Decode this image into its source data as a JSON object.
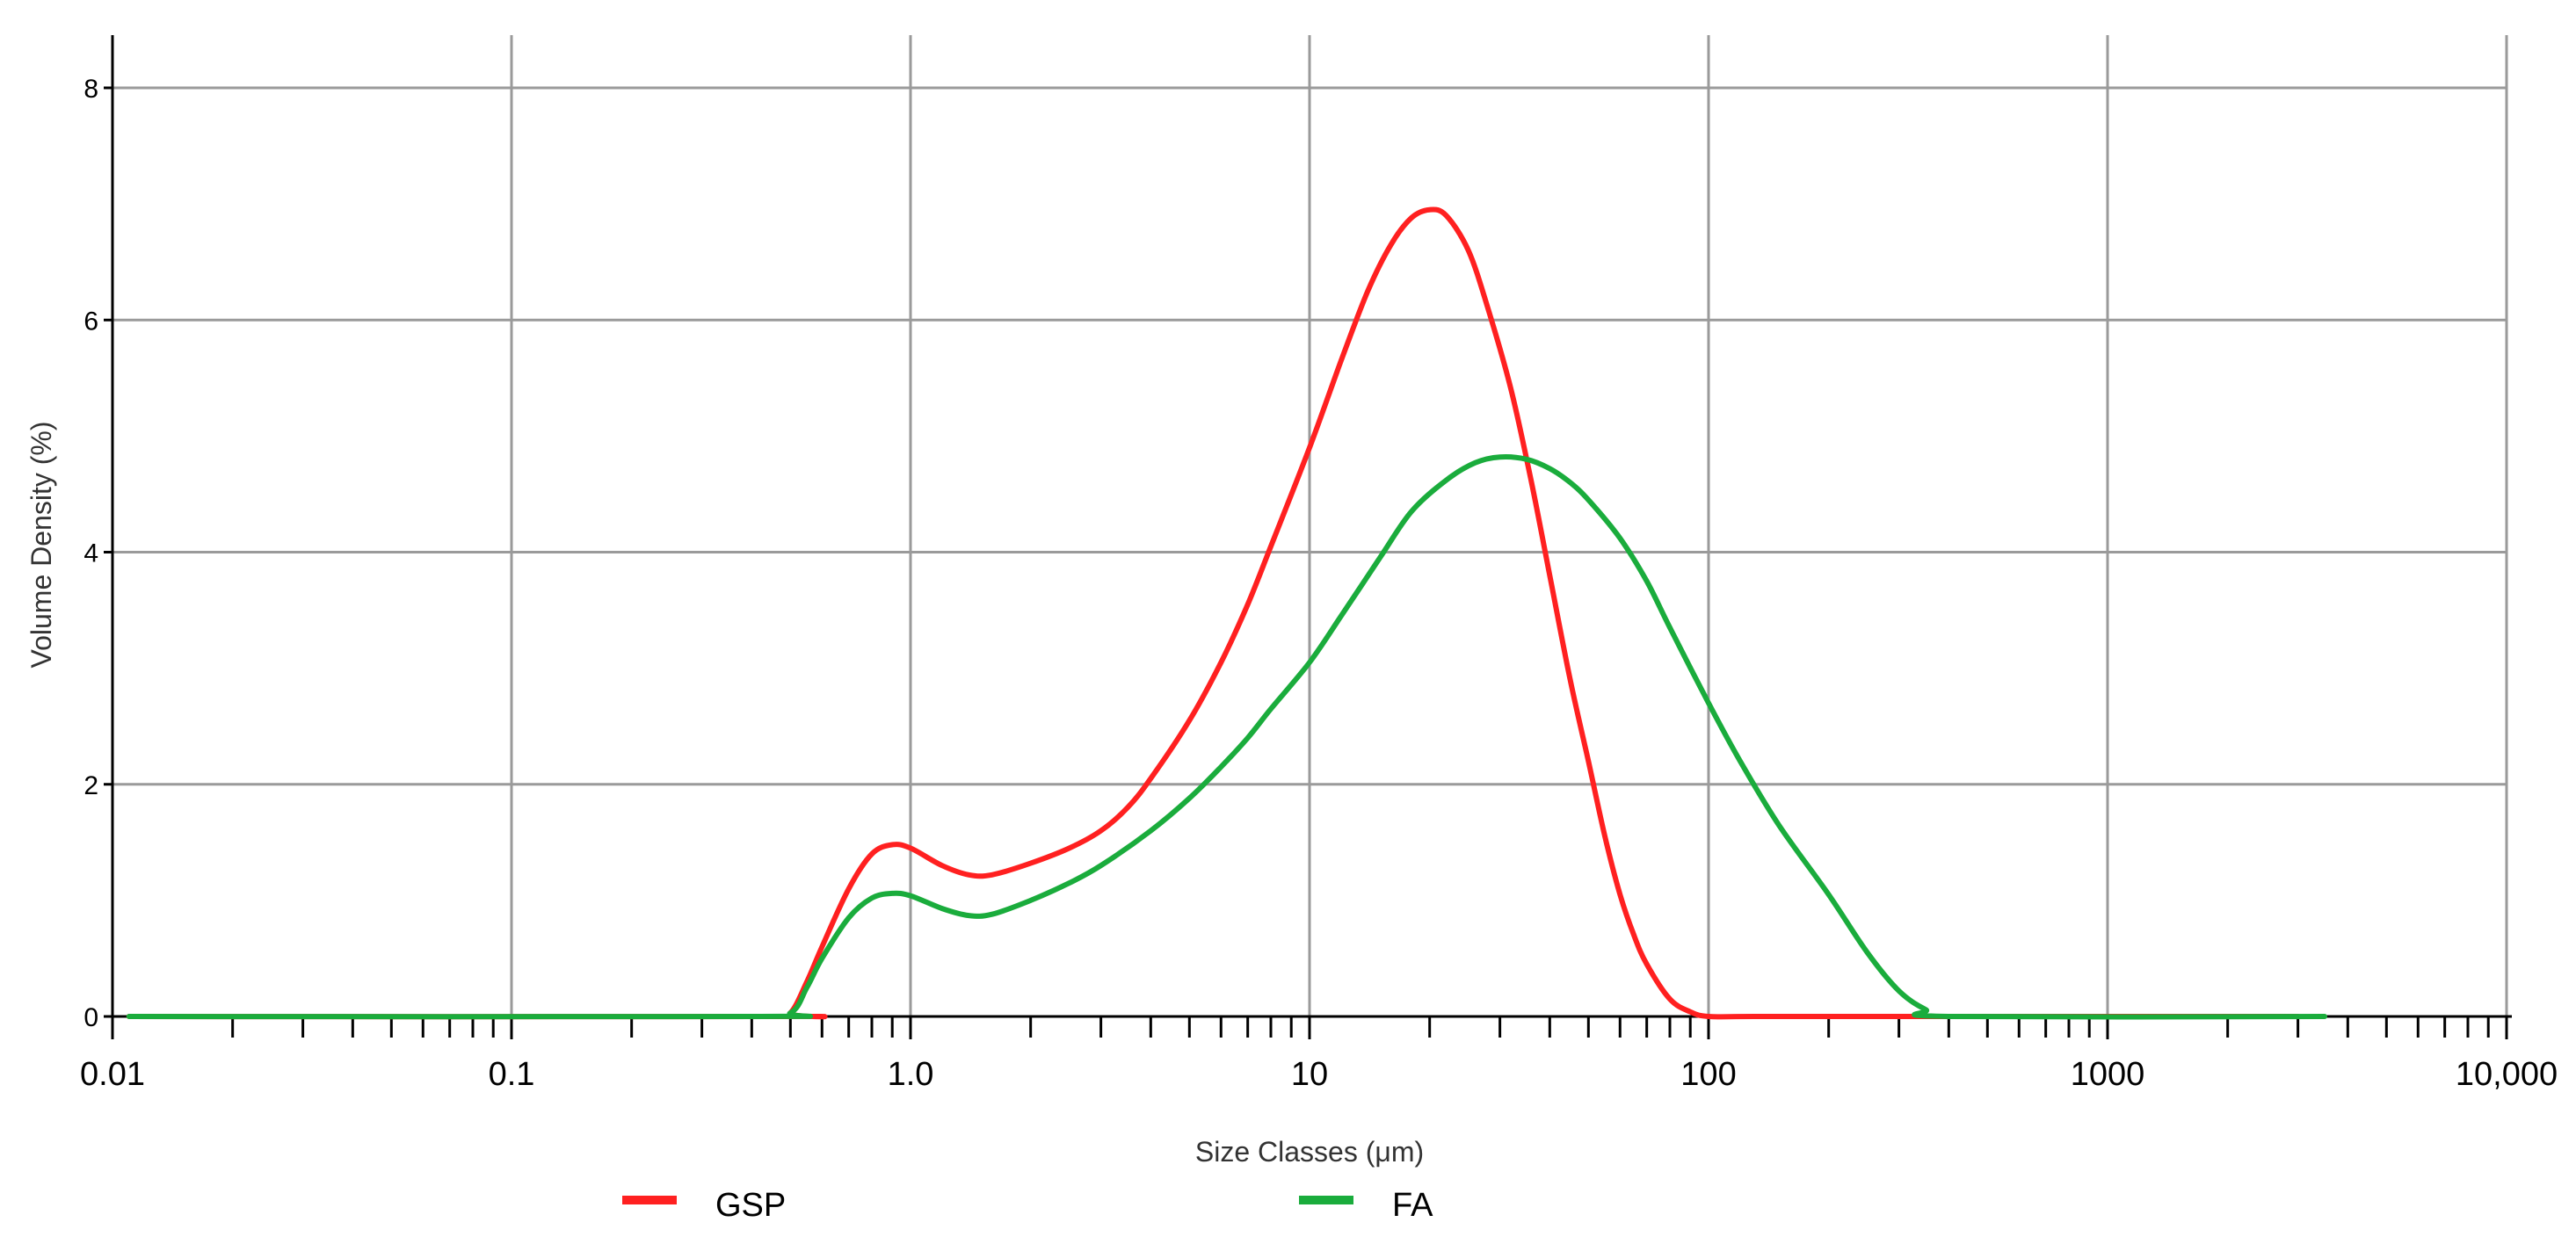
{
  "chart_data": {
    "type": "line",
    "xscale": "log",
    "xlabel": "Size Classes (μm)",
    "ylabel": "Volume Density (%)",
    "xlim": [
      0.01,
      10000
    ],
    "ylim": [
      0,
      8
    ],
    "x_ticks": [
      {
        "value": 0.01,
        "label": "0.01"
      },
      {
        "value": 0.1,
        "label": "0.1"
      },
      {
        "value": 1,
        "label": "1.0"
      },
      {
        "value": 10,
        "label": "10"
      },
      {
        "value": 100,
        "label": "100"
      },
      {
        "value": 1000,
        "label": "1000"
      },
      {
        "value": 10000,
        "label": "10,000"
      }
    ],
    "y_ticks": [
      {
        "value": 0,
        "label": "0"
      },
      {
        "value": 2,
        "label": "2"
      },
      {
        "value": 4,
        "label": "4"
      },
      {
        "value": 6,
        "label": "6"
      },
      {
        "value": 8,
        "label": "8"
      }
    ],
    "grid": true,
    "legend_position": "bottom",
    "series": [
      {
        "name": "GSP",
        "color": "#ff2020",
        "points": [
          [
            0.011,
            0
          ],
          [
            0.45,
            0
          ],
          [
            0.5,
            0.03
          ],
          [
            0.55,
            0.3
          ],
          [
            0.6,
            0.6
          ],
          [
            0.7,
            1.1
          ],
          [
            0.8,
            1.4
          ],
          [
            0.9,
            1.48
          ],
          [
            1.0,
            1.45
          ],
          [
            1.2,
            1.3
          ],
          [
            1.4,
            1.22
          ],
          [
            1.6,
            1.22
          ],
          [
            2.0,
            1.32
          ],
          [
            2.5,
            1.45
          ],
          [
            3.0,
            1.6
          ],
          [
            3.5,
            1.8
          ],
          [
            4.0,
            2.05
          ],
          [
            5.0,
            2.55
          ],
          [
            6.0,
            3.05
          ],
          [
            7.0,
            3.55
          ],
          [
            8.0,
            4.05
          ],
          [
            10,
            4.9
          ],
          [
            12,
            5.65
          ],
          [
            14,
            6.25
          ],
          [
            16,
            6.65
          ],
          [
            18,
            6.88
          ],
          [
            20,
            6.95
          ],
          [
            22,
            6.9
          ],
          [
            25,
            6.6
          ],
          [
            28,
            6.1
          ],
          [
            32,
            5.4
          ],
          [
            36,
            4.6
          ],
          [
            40,
            3.8
          ],
          [
            45,
            2.9
          ],
          [
            50,
            2.2
          ],
          [
            55,
            1.55
          ],
          [
            60,
            1.05
          ],
          [
            65,
            0.7
          ],
          [
            70,
            0.45
          ],
          [
            80,
            0.15
          ],
          [
            90,
            0.04
          ],
          [
            100,
            0.0
          ],
          [
            130,
            0.0
          ],
          [
            400,
            0.0
          ],
          [
            3000,
            0.0
          ]
        ]
      },
      {
        "name": "FA",
        "color": "#1aac3c",
        "points": [
          [
            0.011,
            0
          ],
          [
            0.4,
            0
          ],
          [
            0.5,
            0.03
          ],
          [
            0.55,
            0.25
          ],
          [
            0.6,
            0.5
          ],
          [
            0.7,
            0.85
          ],
          [
            0.8,
            1.02
          ],
          [
            0.9,
            1.06
          ],
          [
            1.0,
            1.04
          ],
          [
            1.2,
            0.93
          ],
          [
            1.4,
            0.87
          ],
          [
            1.6,
            0.88
          ],
          [
            2.0,
            1.0
          ],
          [
            2.5,
            1.15
          ],
          [
            3.0,
            1.3
          ],
          [
            4.0,
            1.6
          ],
          [
            5.0,
            1.88
          ],
          [
            6.0,
            2.15
          ],
          [
            7.0,
            2.4
          ],
          [
            8.0,
            2.65
          ],
          [
            10,
            3.05
          ],
          [
            12,
            3.45
          ],
          [
            15,
            3.95
          ],
          [
            18,
            4.35
          ],
          [
            22,
            4.62
          ],
          [
            26,
            4.77
          ],
          [
            30,
            4.82
          ],
          [
            35,
            4.8
          ],
          [
            40,
            4.72
          ],
          [
            45,
            4.6
          ],
          [
            50,
            4.45
          ],
          [
            60,
            4.12
          ],
          [
            70,
            3.75
          ],
          [
            80,
            3.35
          ],
          [
            100,
            2.7
          ],
          [
            120,
            2.2
          ],
          [
            150,
            1.65
          ],
          [
            200,
            1.05
          ],
          [
            250,
            0.55
          ],
          [
            300,
            0.22
          ],
          [
            350,
            0.06
          ],
          [
            400,
            0.0
          ],
          [
            3500,
            0.0
          ]
        ]
      }
    ]
  }
}
